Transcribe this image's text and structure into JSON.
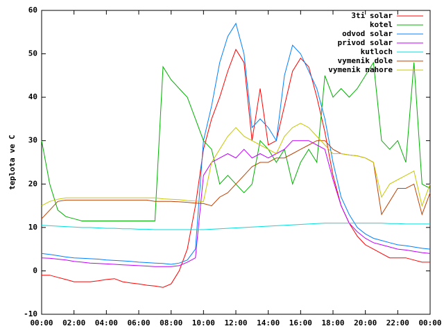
{
  "chart_data": {
    "type": "line",
    "y_label": "teplota ve C",
    "x": [
      0,
      0.5,
      1,
      1.5,
      2,
      2.5,
      3,
      3.5,
      4,
      4.5,
      5,
      5.5,
      6,
      6.5,
      7,
      7.5,
      8,
      8.5,
      9,
      9.5,
      10,
      10.5,
      11,
      11.5,
      12,
      12.5,
      13,
      13.5,
      14,
      14.5,
      15,
      15.5,
      16,
      16.5,
      17,
      17.5,
      18,
      18.5,
      19,
      19.5,
      20,
      20.5,
      21,
      21.5,
      22,
      22.5,
      23,
      23.5,
      24
    ],
    "xlim": [
      0,
      24
    ],
    "xticks": [
      {
        "value": 0,
        "label": "00:00"
      },
      {
        "value": 2,
        "label": "02:00"
      },
      {
        "value": 4,
        "label": "04:00"
      },
      {
        "value": 6,
        "label": "06:00"
      },
      {
        "value": 8,
        "label": "08:00"
      },
      {
        "value": 10,
        "label": "10:00"
      },
      {
        "value": 12,
        "label": "12:00"
      },
      {
        "value": 14,
        "label": "14:00"
      },
      {
        "value": 16,
        "label": "16:00"
      },
      {
        "value": 18,
        "label": "18:00"
      },
      {
        "value": 20,
        "label": "20:00"
      },
      {
        "value": 22,
        "label": "22:00"
      },
      {
        "value": 24,
        "label": "00:00"
      }
    ],
    "ylim": [
      -10,
      60
    ],
    "yticks": [
      -10,
      0,
      10,
      20,
      30,
      40,
      50,
      60
    ],
    "legend": "top-right",
    "series": [
      {
        "name": "3ti solar",
        "color": "#ff0000",
        "values": [
          -1,
          -1,
          -1.5,
          -2,
          -2.5,
          -2.5,
          -2.5,
          -2.3,
          -2,
          -1.8,
          -2.5,
          -2.8,
          -3,
          -3.3,
          -3.5,
          -3.8,
          -3,
          0,
          5,
          15,
          28,
          35,
          40,
          46,
          51,
          48,
          30,
          42,
          29,
          30,
          38,
          46,
          49,
          47,
          40,
          32,
          22,
          15,
          11,
          8,
          6,
          5,
          4,
          3,
          3,
          3,
          2.5,
          2,
          2
        ]
      },
      {
        "name": "kotel",
        "color": "#00b000",
        "values": [
          30,
          20,
          14,
          12.5,
          12,
          11.5,
          11.5,
          11.5,
          11.5,
          11.5,
          11.5,
          11.5,
          11.5,
          11.5,
          11.5,
          47,
          44,
          42,
          40,
          35,
          30,
          28,
          20,
          22,
          20,
          18,
          20,
          30,
          28,
          25,
          28,
          20,
          25,
          28,
          25,
          45,
          40,
          42,
          40,
          42,
          45,
          48,
          30,
          28,
          30,
          25,
          48,
          20,
          19
        ]
      },
      {
        "name": "odvod solar",
        "color": "#0080ff",
        "values": [
          4,
          3.8,
          3.5,
          3.2,
          3,
          2.9,
          2.8,
          2.7,
          2.5,
          2.4,
          2.3,
          2.2,
          2,
          1.9,
          1.8,
          1.7,
          1.5,
          1.8,
          2.5,
          5,
          30,
          38,
          48,
          54,
          57,
          50,
          33,
          35,
          33,
          30,
          45,
          52,
          50,
          46,
          42,
          35,
          25,
          17,
          13,
          10,
          8.5,
          7.5,
          7,
          6.5,
          6,
          5.8,
          5.5,
          5.2,
          5
        ]
      },
      {
        "name": "privod solar",
        "color": "#c000ff",
        "values": [
          3,
          2.9,
          2.7,
          2.5,
          2.2,
          2,
          1.8,
          1.7,
          1.6,
          1.5,
          1.4,
          1.3,
          1.2,
          1.1,
          1,
          1,
          1,
          1.2,
          2,
          3,
          22,
          25,
          26,
          27,
          26,
          28,
          26,
          27,
          26,
          27,
          28,
          30,
          30,
          30,
          29,
          28,
          21,
          15,
          11,
          9,
          7.5,
          6.5,
          6,
          5.5,
          5,
          4.8,
          4.5,
          4.2,
          4
        ]
      },
      {
        "name": "kutloch",
        "color": "#00dddd",
        "values": [
          10.5,
          10.4,
          10.3,
          10.2,
          10.1,
          10,
          10,
          9.9,
          9.8,
          9.8,
          9.7,
          9.7,
          9.6,
          9.6,
          9.5,
          9.5,
          9.5,
          9.5,
          9.5,
          9.5,
          9.5,
          9.6,
          9.7,
          9.8,
          9.9,
          10,
          10.1,
          10.2,
          10.3,
          10.4,
          10.5,
          10.6,
          10.7,
          10.8,
          10.9,
          11,
          11,
          11,
          11,
          11,
          11,
          11,
          11,
          10.9,
          10.9,
          10.8,
          10.8,
          10.8,
          10.8
        ]
      },
      {
        "name": "vymenik dole",
        "color": "#c04000",
        "values": [
          12,
          14,
          16,
          16.3,
          16.3,
          16.3,
          16.3,
          16.3,
          16.3,
          16.3,
          16.3,
          16.3,
          16.3,
          16.3,
          16,
          16,
          16,
          15.9,
          15.8,
          15.6,
          15.5,
          15,
          17,
          18,
          20,
          22,
          24,
          25,
          25,
          26,
          26,
          27,
          28,
          29,
          30,
          30,
          28,
          27,
          26.7,
          26.5,
          26,
          25,
          13,
          16,
          19,
          19,
          20,
          13,
          18
        ]
      },
      {
        "name": "vymenik nahore",
        "color": "#c8c800",
        "values": [
          15,
          16,
          16.5,
          16.8,
          16.8,
          16.8,
          16.8,
          16.8,
          16.8,
          16.8,
          16.8,
          16.8,
          16.8,
          16.8,
          16.8,
          16.6,
          16.5,
          16.4,
          16.2,
          16.1,
          16,
          25,
          28,
          31,
          33,
          31,
          30,
          29,
          28,
          27,
          31,
          33,
          34,
          33,
          31,
          29,
          27,
          27,
          26.7,
          26.5,
          26,
          25,
          17,
          20,
          21,
          22,
          23,
          15,
          20
        ]
      }
    ]
  }
}
